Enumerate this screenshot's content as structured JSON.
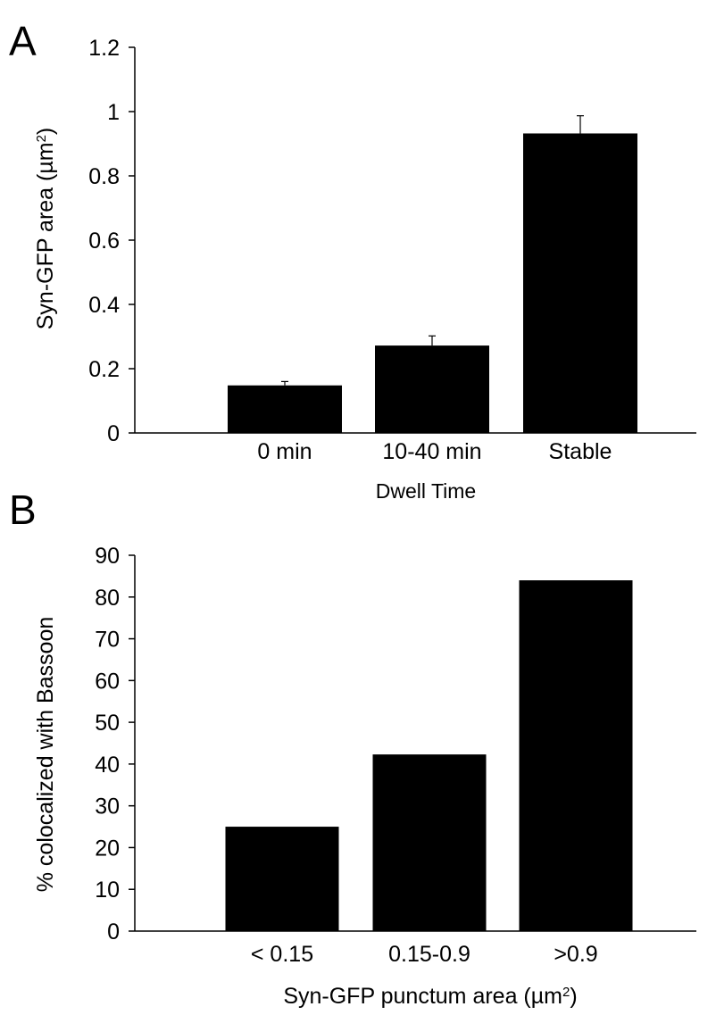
{
  "chart_data": [
    {
      "panel": "A",
      "type": "bar",
      "categories": [
        "0 min",
        "10-40 min",
        "Stable"
      ],
      "values": [
        0.148,
        0.272,
        0.932
      ],
      "errors": [
        0.012,
        0.03,
        0.055
      ],
      "xlabel": "Dwell Time",
      "ylabel": "Syn-GFP area (µm²)",
      "ylabel_parts": {
        "main": "Syn-GFP area (µm",
        "sup": "2",
        "end": ")"
      },
      "ylim": [
        0,
        1.2
      ],
      "yticks": [
        0,
        0.2,
        0.4,
        0.6,
        0.8,
        1,
        1.2
      ],
      "ytick_labels": [
        "0",
        "0.2",
        "0.4",
        "0.6",
        "0.8",
        "1",
        "1.2"
      ],
      "bar_color": "#000000",
      "grid": false,
      "legend": "none"
    },
    {
      "panel": "B",
      "type": "bar",
      "categories": [
        "< 0.15",
        "0.15-0.9",
        ">0.9"
      ],
      "values": [
        25,
        42.3,
        84
      ],
      "xlabel": "Syn-GFP punctum area (µm²)",
      "xlabel_parts": {
        "main": "Syn-GFP punctum area (µm",
        "sup": "2",
        "end": ")"
      },
      "ylabel": "% colocalized with Bassoon",
      "ylim": [
        0,
        90
      ],
      "yticks": [
        0,
        10,
        20,
        30,
        40,
        50,
        60,
        70,
        80,
        90
      ],
      "ytick_labels": [
        "0",
        "10",
        "20",
        "30",
        "40",
        "50",
        "60",
        "70",
        "80",
        "90"
      ],
      "bar_color": "#000000",
      "grid": false,
      "legend": "none"
    }
  ]
}
